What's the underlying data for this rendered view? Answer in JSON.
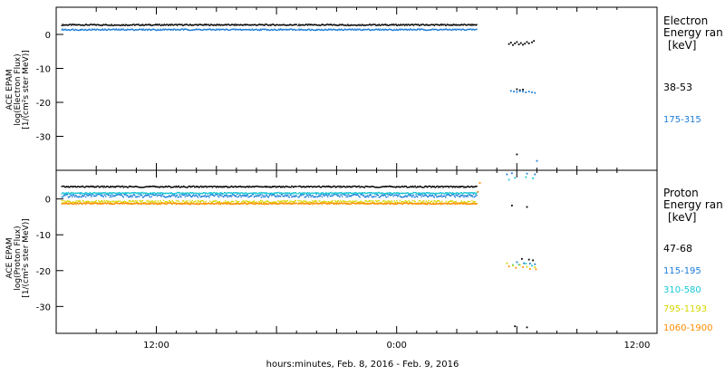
{
  "chart_data": [
    {
      "type": "scatter",
      "panel": "electron",
      "ylabel_lines": [
        "ACE EPAM",
        "log(Electron Flux)",
        "[1/(cm²s ster MeV)]"
      ],
      "y_ticks": [
        0,
        -10,
        -20,
        -30
      ],
      "ylim": [
        -40,
        8
      ],
      "legend_title": [
        "Electron",
        "Energy ran",
        "[keV]"
      ],
      "series": [
        {
          "name": "38-53",
          "color": "#000000",
          "segments": [
            [
              -9.5,
              14.0,
              2.8
            ],
            [
              14.1,
              32.0,
              2.8
            ]
          ],
          "extra_points": [
            [
              35.2,
              -2.8
            ],
            [
              35.4,
              -2.4
            ],
            [
              35.6,
              -3.1
            ],
            [
              35.8,
              -2.6
            ],
            [
              36.0,
              -2.2
            ],
            [
              36.2,
              -2.9
            ],
            [
              36.4,
              -2.5
            ],
            [
              36.6,
              -3.0
            ],
            [
              36.8,
              -2.7
            ],
            [
              37.0,
              -2.2
            ],
            [
              37.2,
              -2.6
            ],
            [
              37.5,
              -2.3
            ],
            [
              37.7,
              -1.9
            ],
            [
              36.0,
              -16.1
            ],
            [
              36.3,
              -16.4
            ],
            [
              36.6,
              -16.2
            ],
            [
              36.0,
              -35.3
            ]
          ]
        },
        {
          "name": "175-315",
          "color": "#1a7cd8",
          "segments": [
            [
              -9.5,
              14.0,
              1.4
            ],
            [
              14.1,
              32.0,
              1.4
            ]
          ],
          "extra_points": [
            [
              35.4,
              -16.6
            ],
            [
              35.7,
              -16.8
            ],
            [
              36.0,
              -16.9
            ],
            [
              36.3,
              -16.7
            ],
            [
              36.6,
              -16.8
            ],
            [
              36.9,
              -17.0
            ],
            [
              37.2,
              -16.8
            ],
            [
              37.5,
              -17.0
            ],
            [
              37.8,
              -17.2
            ],
            [
              38.0,
              -37.2
            ]
          ]
        }
      ]
    },
    {
      "type": "scatter",
      "panel": "proton",
      "ylabel_lines": [
        "ACE EPAM",
        "log(Proton Flux)",
        "[1/(cm²s ster MeV)]"
      ],
      "y_ticks": [
        0,
        -10,
        -20,
        -30
      ],
      "ylim": [
        -37.5,
        8
      ],
      "legend_title": [
        "Proton",
        "Energy ran",
        "[keV]"
      ],
      "series": [
        {
          "name": "47-68",
          "color": "#000000",
          "segments": [
            [
              -9.5,
              14.0,
              3.4
            ],
            [
              14.1,
              32.0,
              3.4
            ]
          ],
          "extra_points": [
            [
              36.5,
              -16.7
            ],
            [
              37.2,
              -16.9
            ],
            [
              37.6,
              -17.1
            ],
            [
              35.5,
              -1.8
            ],
            [
              37.0,
              -2.2
            ],
            [
              35.8,
              -35.5
            ],
            [
              37.0,
              -35.8
            ]
          ]
        },
        {
          "name": "115-195",
          "color": "#1a7cd8",
          "segments": [
            [
              -9.5,
              14.0,
              0.9
            ],
            [
              14.1,
              32.0,
              0.9
            ]
          ],
          "extra_points": [
            [
              35.0,
              6.9
            ],
            [
              35.5,
              7.2
            ],
            [
              37.0,
              7.1
            ],
            [
              37.8,
              6.9
            ],
            [
              36.0,
              -17.6
            ],
            [
              36.7,
              -17.9
            ],
            [
              37.3,
              -18.0
            ],
            [
              37.8,
              -18.2
            ]
          ]
        },
        {
          "name": "310-580",
          "color": "#19c8d2",
          "segments": [
            [
              -9.5,
              14.0,
              1.6
            ],
            [
              14.1,
              32.0,
              1.6
            ]
          ],
          "extra_points": [
            [
              35.2,
              5.4
            ],
            [
              35.8,
              5.9
            ],
            [
              36.9,
              6.1
            ],
            [
              37.6,
              5.8
            ],
            [
              35.6,
              -18.4
            ],
            [
              36.2,
              -18.3
            ],
            [
              36.9,
              -18.0
            ],
            [
              37.5,
              -18.6
            ]
          ]
        },
        {
          "name": "795-1193",
          "color": "#d6d600",
          "segments": [
            [
              -9.5,
              14.0,
              -0.9
            ],
            [
              14.1,
              32.0,
              -0.9
            ]
          ],
          "extra_points": [
            [
              35.0,
              -17.9
            ],
            [
              35.6,
              -18.6
            ],
            [
              36.3,
              -18.4
            ],
            [
              37.0,
              -18.9
            ],
            [
              37.8,
              -19.0
            ]
          ]
        },
        {
          "name": "1060-1900",
          "color": "#ff8c00",
          "segments": [
            [
              -9.5,
              14.0,
              -1.3
            ],
            [
              14.1,
              32.0,
              -1.3
            ]
          ],
          "extra_points": [
            [
              32.3,
              4.5
            ],
            [
              32.1,
              2.0
            ],
            [
              35.2,
              -18.8
            ],
            [
              35.9,
              -19.2
            ],
            [
              36.6,
              -19.0
            ],
            [
              37.3,
              -19.5
            ],
            [
              37.9,
              -19.6
            ]
          ]
        }
      ]
    }
  ],
  "x_axis": {
    "xlim": [
      -10,
      50
    ],
    "ticks": [
      {
        "value": 0,
        "label": "12:00"
      },
      {
        "value": 24,
        "label": "0:00"
      },
      {
        "value": 48,
        "label": "12:00"
      }
    ],
    "xlabel": "hours:minutes, Feb.  8, 2016 - Feb.  9, 2016"
  }
}
